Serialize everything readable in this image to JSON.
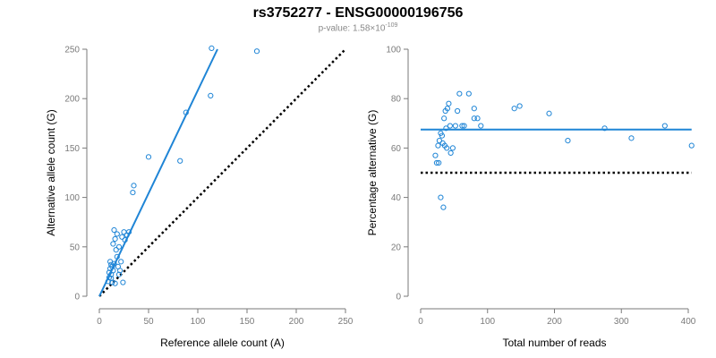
{
  "title": "rs3752277 - ENSG00000196756",
  "subtitle": {
    "prefix": "p-value: 1.58×10",
    "exponent": "-109"
  },
  "colors": {
    "points": "#1f85d6",
    "fit_line": "#1f85d6",
    "reference_line": "#000000",
    "axis": "#7a7a7a"
  },
  "chart_data": [
    {
      "type": "scatter",
      "xlabel": "Reference allele count (A)",
      "ylabel": "Alternative allele count (G)",
      "xlim": [
        0,
        250
      ],
      "ylim": [
        0,
        250
      ],
      "xticks": [
        0,
        50,
        100,
        150,
        200,
        250
      ],
      "yticks": [
        0,
        50,
        100,
        150,
        200,
        250
      ],
      "x": [
        9,
        10,
        10,
        11,
        11,
        12,
        12,
        12,
        13,
        13,
        14,
        14,
        15,
        15,
        16,
        16,
        17,
        18,
        18,
        19,
        20,
        20,
        21,
        22,
        23,
        24,
        25,
        26,
        28,
        30,
        34,
        35,
        50,
        82,
        88,
        113,
        114,
        160
      ],
      "y": [
        15,
        19,
        24,
        35,
        28,
        32,
        18,
        22,
        30,
        14,
        26,
        53,
        33,
        67,
        13,
        58,
        47,
        40,
        63,
        30,
        22,
        50,
        26,
        35,
        60,
        14,
        65,
        57,
        62,
        65,
        105,
        112,
        141,
        137,
        186,
        203,
        251,
        248
      ],
      "fit_line": {
        "x": [
          0,
          120
        ],
        "y": [
          0,
          250
        ]
      },
      "reference_line": {
        "x": [
          0,
          250
        ],
        "y": [
          0,
          250
        ]
      }
    },
    {
      "type": "scatter",
      "xlabel": "Total number of reads",
      "ylabel": "Percentage alternative (G)",
      "xlim": [
        0,
        400
      ],
      "ylim": [
        0,
        100
      ],
      "xticks": [
        0,
        100,
        200,
        300,
        400
      ],
      "yticks": [
        0,
        20,
        40,
        60,
        80,
        100
      ],
      "x": [
        22,
        24,
        26,
        27,
        28,
        30,
        30,
        32,
        33,
        34,
        35,
        36,
        37,
        38,
        39,
        40,
        42,
        44,
        45,
        48,
        52,
        55,
        58,
        62,
        65,
        72,
        80,
        80,
        85,
        90,
        140,
        148,
        192,
        220,
        275,
        315,
        365,
        405
      ],
      "y": [
        57,
        54,
        61,
        54,
        63,
        66,
        40,
        65,
        62,
        36,
        72,
        61,
        75,
        68,
        60,
        76,
        78,
        69,
        58,
        60,
        69,
        75,
        82,
        69,
        69,
        82,
        76,
        72,
        72,
        69,
        76,
        77,
        74,
        63,
        68,
        64,
        69,
        61
      ],
      "fit_line": {
        "x": [
          0,
          405
        ],
        "y": [
          67.5,
          67.5
        ]
      },
      "reference_line": {
        "x": [
          0,
          405
        ],
        "y": [
          50,
          50
        ]
      }
    }
  ]
}
